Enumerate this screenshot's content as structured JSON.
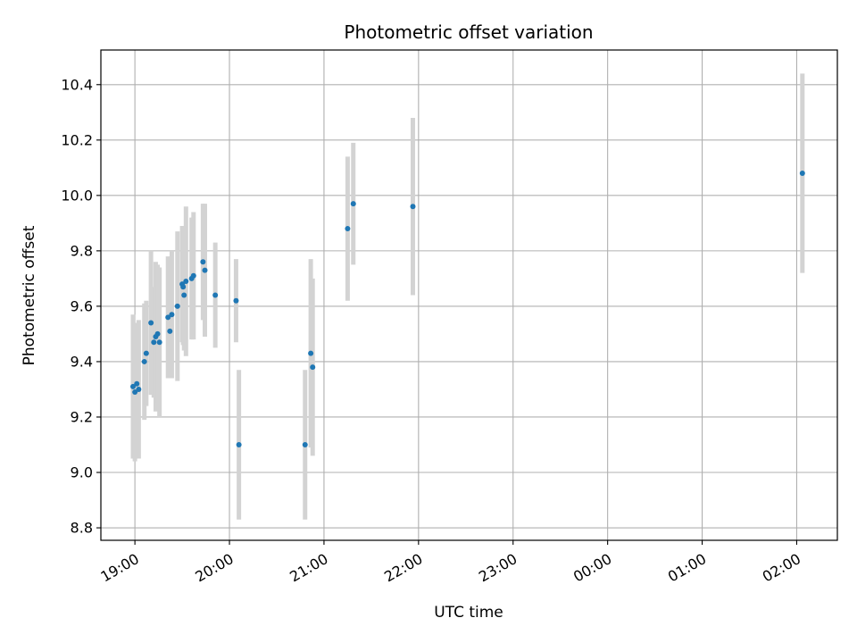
{
  "chart_data": {
    "type": "scatter",
    "title": "Photometric offset variation",
    "xlabel": "UTC time",
    "ylabel": "Photometric offset",
    "x_ticks": [
      "19:00",
      "20:00",
      "21:00",
      "22:00",
      "23:00",
      "00:00",
      "01:00",
      "02:00"
    ],
    "y_ticks": [
      "8.8",
      "9.0",
      "9.2",
      "9.4",
      "9.6",
      "9.8",
      "10.0",
      "10.2",
      "10.4"
    ],
    "x_unit": "hours after 19:00 UTC",
    "xlim": [
      -0.36,
      7.43
    ],
    "ylim": [
      8.755,
      10.525
    ],
    "grid": true,
    "colors": {
      "point": "#1f77b4",
      "errorbar": "#d3d3d3",
      "grid": "#b0b0b0"
    },
    "points": [
      {
        "x": -0.02,
        "y": 9.31,
        "err": 0.26
      },
      {
        "x": 0.0,
        "y": 9.29,
        "err": 0.25
      },
      {
        "x": 0.02,
        "y": 9.32,
        "err": 0.22
      },
      {
        "x": 0.04,
        "y": 9.3,
        "err": 0.25
      },
      {
        "x": 0.1,
        "y": 9.4,
        "err": 0.21
      },
      {
        "x": 0.12,
        "y": 9.43,
        "err": 0.19
      },
      {
        "x": 0.17,
        "y": 9.54,
        "err": 0.26
      },
      {
        "x": 0.2,
        "y": 9.47,
        "err": 0.2
      },
      {
        "x": 0.22,
        "y": 9.49,
        "err": 0.27
      },
      {
        "x": 0.24,
        "y": 9.5,
        "err": 0.25
      },
      {
        "x": 0.26,
        "y": 9.47,
        "err": 0.27
      },
      {
        "x": 0.35,
        "y": 9.56,
        "err": 0.22
      },
      {
        "x": 0.37,
        "y": 9.51,
        "err": 0.17
      },
      {
        "x": 0.39,
        "y": 9.57,
        "err": 0.23
      },
      {
        "x": 0.45,
        "y": 9.6,
        "err": 0.27
      },
      {
        "x": 0.5,
        "y": 9.68,
        "err": 0.21
      },
      {
        "x": 0.51,
        "y": 9.67,
        "err": 0.21
      },
      {
        "x": 0.52,
        "y": 9.64,
        "err": 0.2
      },
      {
        "x": 0.54,
        "y": 9.69,
        "err": 0.27
      },
      {
        "x": 0.6,
        "y": 9.7,
        "err": 0.22
      },
      {
        "x": 0.62,
        "y": 9.71,
        "err": 0.23
      },
      {
        "x": 0.72,
        "y": 9.76,
        "err": 0.21
      },
      {
        "x": 0.74,
        "y": 9.73,
        "err": 0.24
      },
      {
        "x": 0.85,
        "y": 9.64,
        "err": 0.19
      },
      {
        "x": 1.07,
        "y": 9.62,
        "err": 0.15
      },
      {
        "x": 1.1,
        "y": 9.1,
        "err": 0.27
      },
      {
        "x": 1.8,
        "y": 9.1,
        "err": 0.27
      },
      {
        "x": 1.86,
        "y": 9.43,
        "err": 0.34
      },
      {
        "x": 1.88,
        "y": 9.38,
        "err": 0.32
      },
      {
        "x": 2.25,
        "y": 9.88,
        "err": 0.26
      },
      {
        "x": 2.31,
        "y": 9.97,
        "err": 0.22
      },
      {
        "x": 2.94,
        "y": 9.96,
        "err": 0.32
      },
      {
        "x": 7.06,
        "y": 10.08,
        "err": 0.36
      }
    ]
  }
}
